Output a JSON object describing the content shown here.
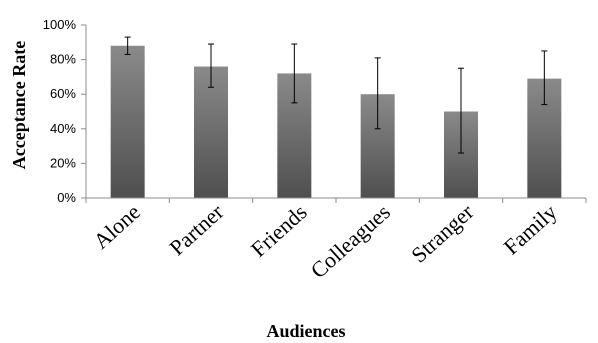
{
  "chart_data": {
    "type": "bar",
    "title": "",
    "xlabel": "Audiences",
    "ylabel": "Acceptance Rate",
    "categories": [
      "Alone",
      "Partner",
      "Friends",
      "Colleagues",
      "Stranger",
      "Family"
    ],
    "series": [
      {
        "values": [
          88,
          76,
          72,
          60,
          50,
          69
        ],
        "error_low": [
          83,
          64,
          55,
          40,
          26,
          54
        ],
        "error_high": [
          93,
          89,
          89,
          81,
          75,
          85
        ]
      }
    ],
    "ylim": [
      0,
      100
    ],
    "yticks": [
      0,
      20,
      40,
      60,
      80,
      100
    ],
    "ytick_labels": [
      "0%",
      "20%",
      "40%",
      "60%",
      "80%",
      "100%"
    ],
    "grid": false,
    "legend": "none",
    "colors": {
      "bar_top": "#8a8a8a",
      "bar_bottom": "#4f4f4f",
      "axis": "#8c8c8c",
      "error_bar": "#000000"
    }
  }
}
